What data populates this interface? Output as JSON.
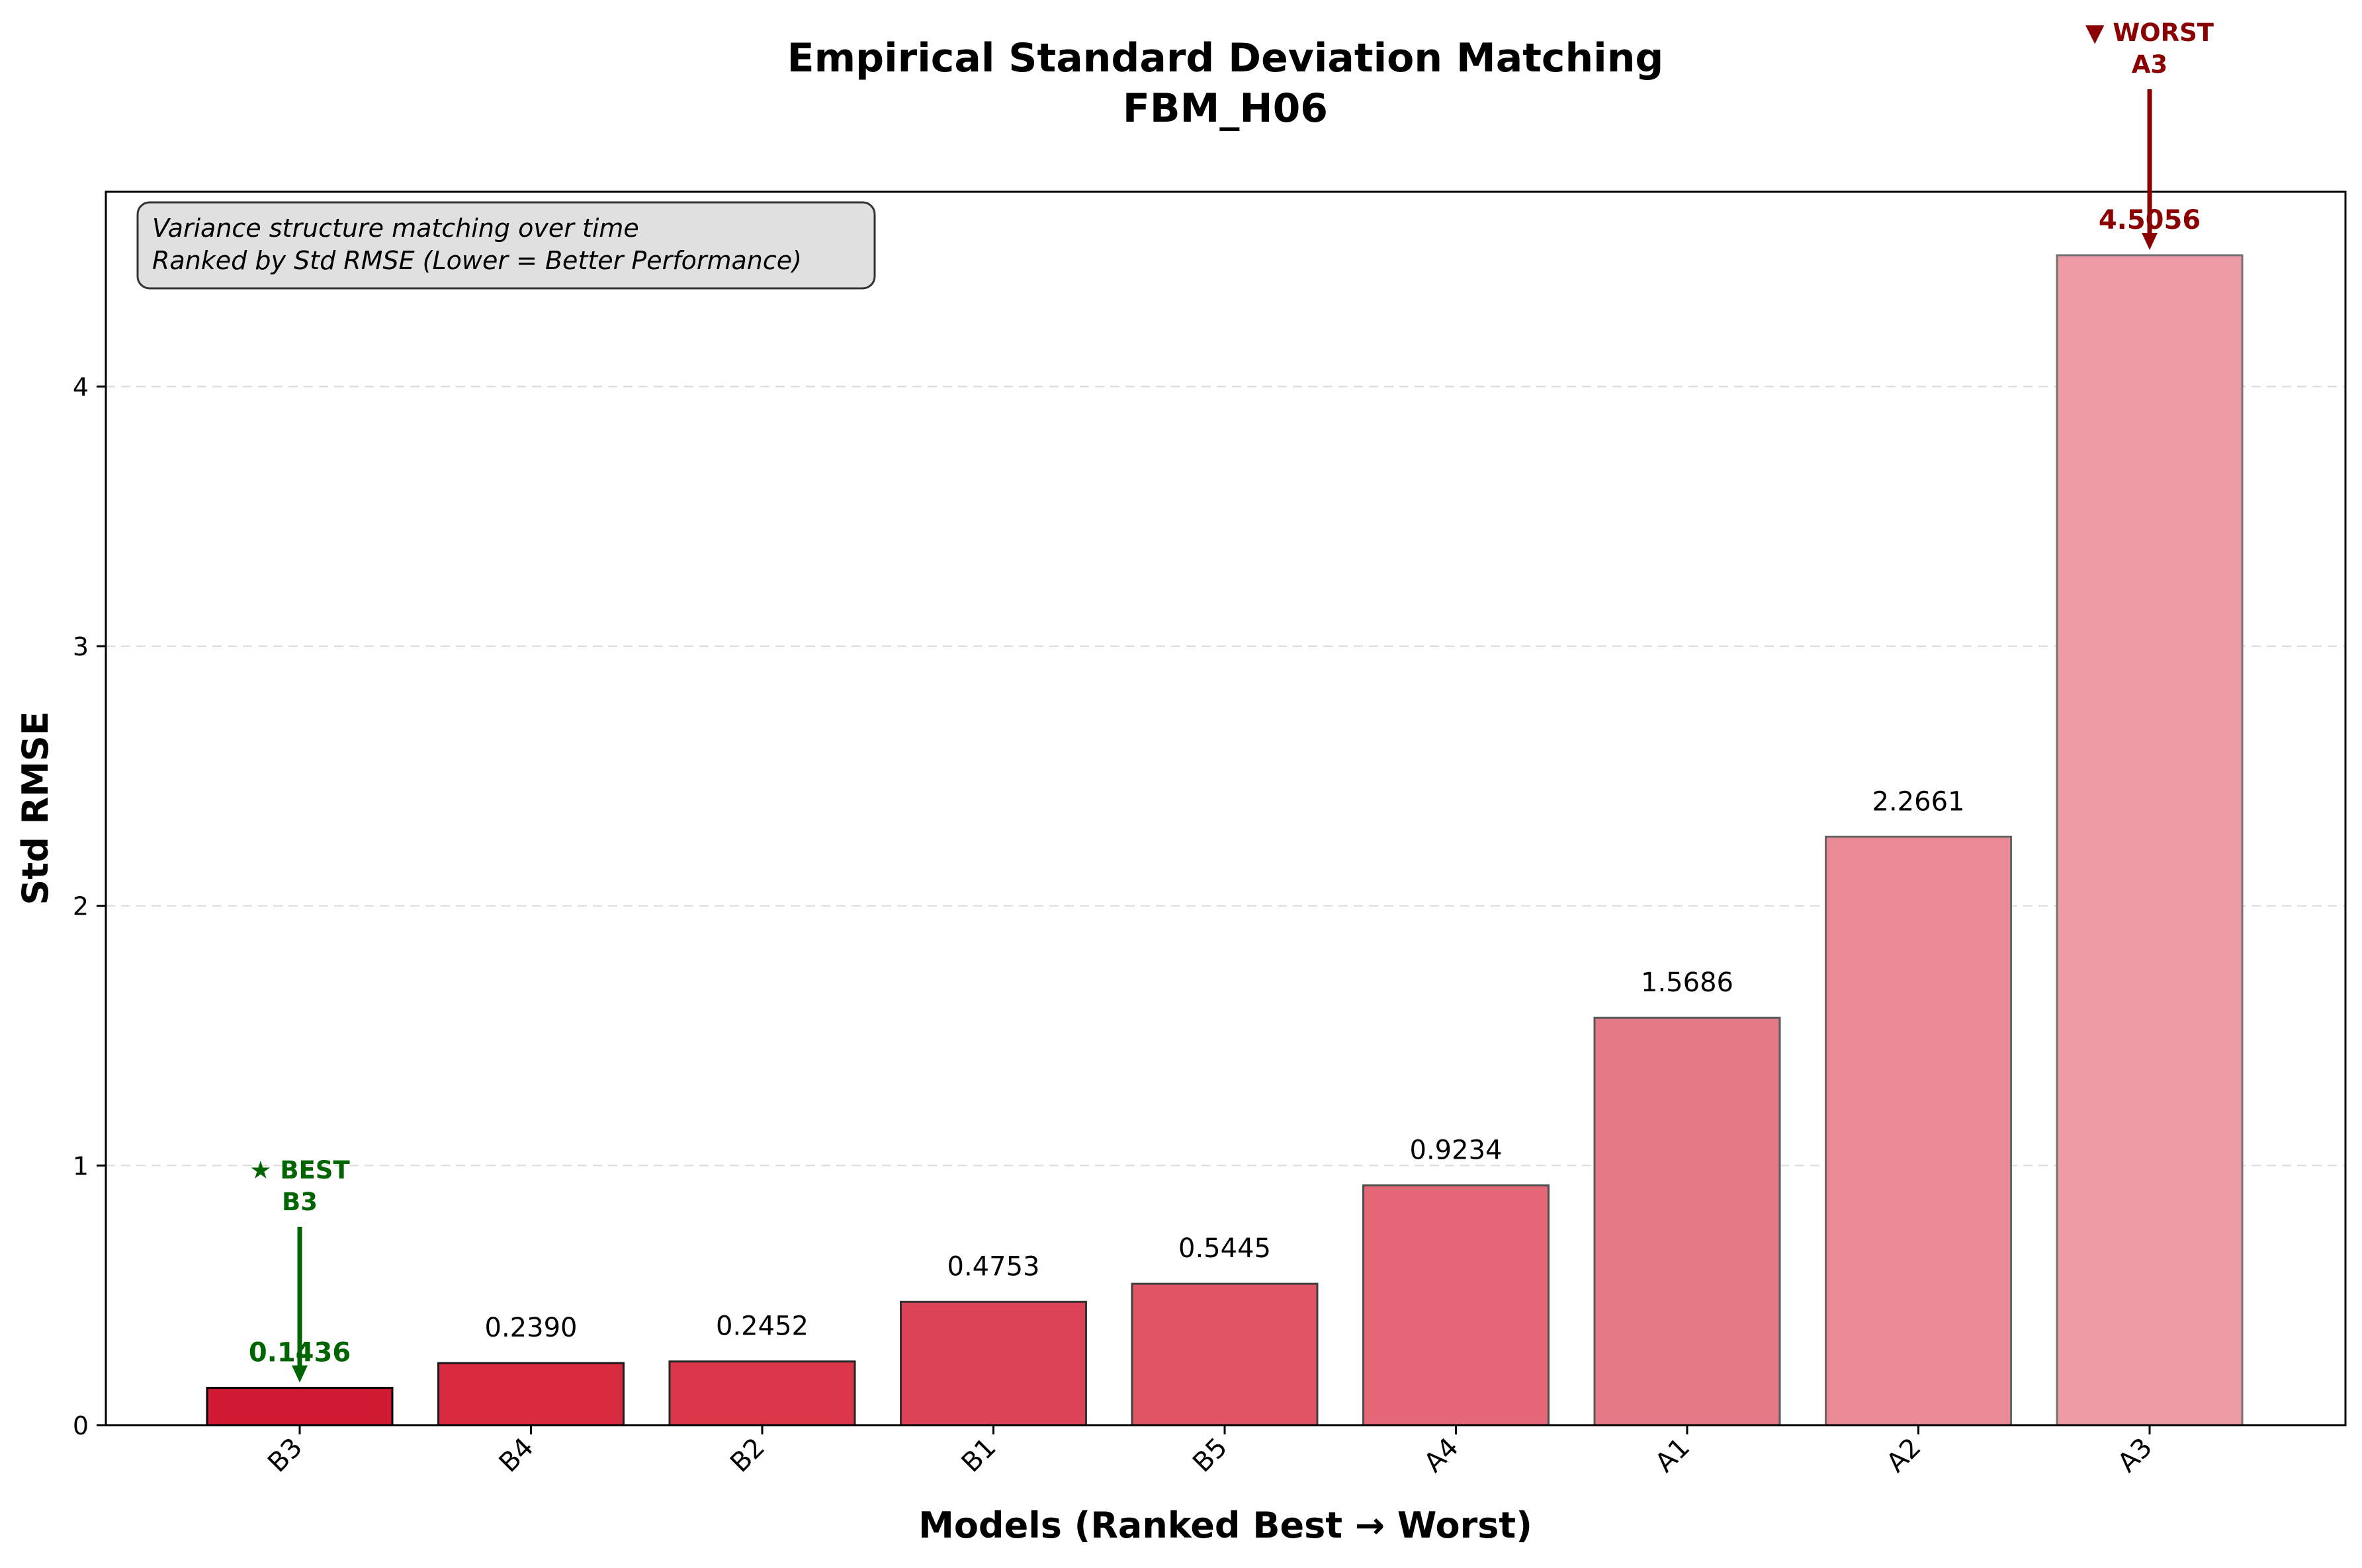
{
  "chart_data": {
    "type": "bar",
    "title": "Empirical Standard Deviation Matching",
    "subtitle": "FBM_H06",
    "xlabel": "Models (Ranked Best → Worst)",
    "ylabel": "Std RMSE",
    "categories": [
      "B3",
      "B4",
      "B2",
      "B1",
      "B5",
      "A4",
      "A1",
      "A2",
      "A3"
    ],
    "values": [
      0.1436,
      0.239,
      0.2452,
      0.4753,
      0.5445,
      0.9234,
      1.5686,
      2.2661,
      4.5056
    ],
    "value_labels": [
      "0.1436",
      "0.2390",
      "0.2452",
      "0.4753",
      "0.5445",
      "0.9234",
      "1.5686",
      "2.2661",
      "4.5056"
    ],
    "ylim": [
      0,
      4.75
    ],
    "yticks": [
      0,
      1,
      2,
      3,
      4
    ],
    "ytick_labels": [
      "0",
      "1",
      "2",
      "3",
      "4"
    ],
    "grid": "y, dashed",
    "info_box": {
      "line1": "Variance structure matching over time",
      "line2": "Ranked by Std RMSE (Lower = Better Performance)",
      "placement": "top-left"
    },
    "best_annotation": {
      "line1": "★ BEST",
      "line2": "B3",
      "target": "B3",
      "color": "#006400"
    },
    "worst_annotation": {
      "line1": "▼ WORST",
      "line2": "A3",
      "target": "A3",
      "color": "#8b0000"
    },
    "bar_colors": [
      "#d01a33",
      "#d72a3e",
      "#da3548",
      "#dd4356",
      "#e05465",
      "#e36777",
      "#e67986",
      "#e98a95",
      "#ec9aa3"
    ],
    "bar_edge_colors": [
      "#000000",
      "#1c1c1c",
      "#262626",
      "#333333",
      "#404040",
      "#4d4d4d",
      "#595959",
      "#666666",
      "#737373"
    ]
  }
}
